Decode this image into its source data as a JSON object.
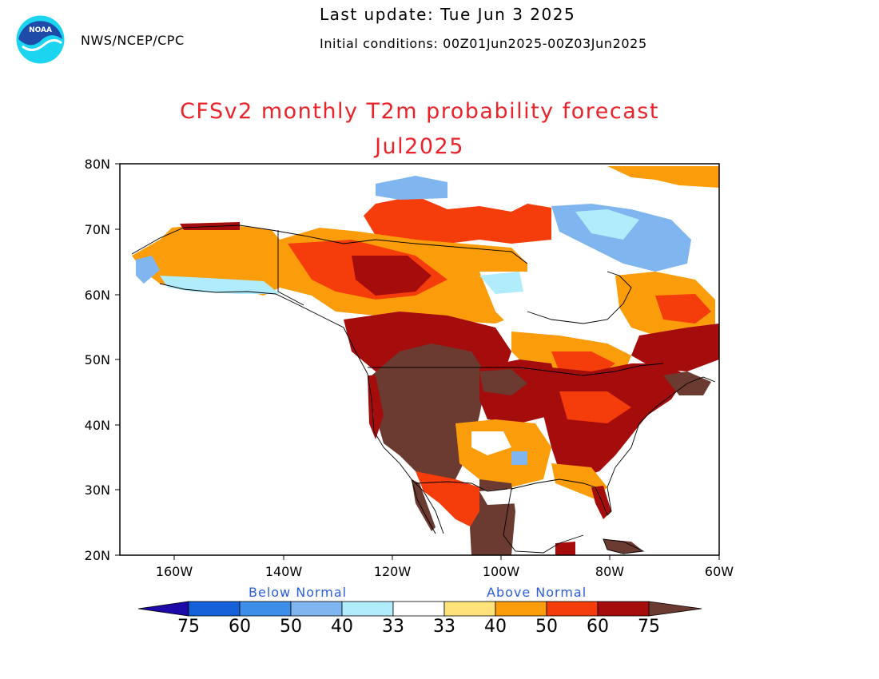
{
  "header": {
    "agency": "NWS/NCEP/CPC",
    "last_update": "Last update: Tue Jun  3 2025",
    "initial_conditions": "Initial conditions: 00Z01Jun2025-00Z03Jun2025"
  },
  "logo": {
    "text": "NOAA",
    "icon": "noaa-logo-icon"
  },
  "title": "CFSv2 monthly T2m probability forecast",
  "subtitle": "Jul2025",
  "axes": {
    "lat_labels": [
      "80N",
      "70N",
      "60N",
      "50N",
      "40N",
      "30N",
      "20N"
    ],
    "lon_labels": [
      "160W",
      "140W",
      "120W",
      "100W",
      "80W",
      "60W"
    ],
    "lat_range": [
      20,
      80
    ],
    "lon_range": [
      -170,
      -60
    ]
  },
  "legend": {
    "below_label": "Below Normal",
    "above_label": "Above Normal",
    "below_values": [
      "75",
      "60",
      "50",
      "40",
      "33"
    ],
    "above_values": [
      "33",
      "40",
      "50",
      "60",
      "75"
    ],
    "colors": {
      "below": [
        "#1c0aa8",
        "#1460d8",
        "#3d8ee8",
        "#80b6f0",
        "#b0ecfc"
      ],
      "neutral": "#ffffff",
      "above": [
        "#ffe27a",
        "#fb9c0a",
        "#f53d0c",
        "#a50c0c",
        "#6b3a30"
      ]
    }
  }
}
